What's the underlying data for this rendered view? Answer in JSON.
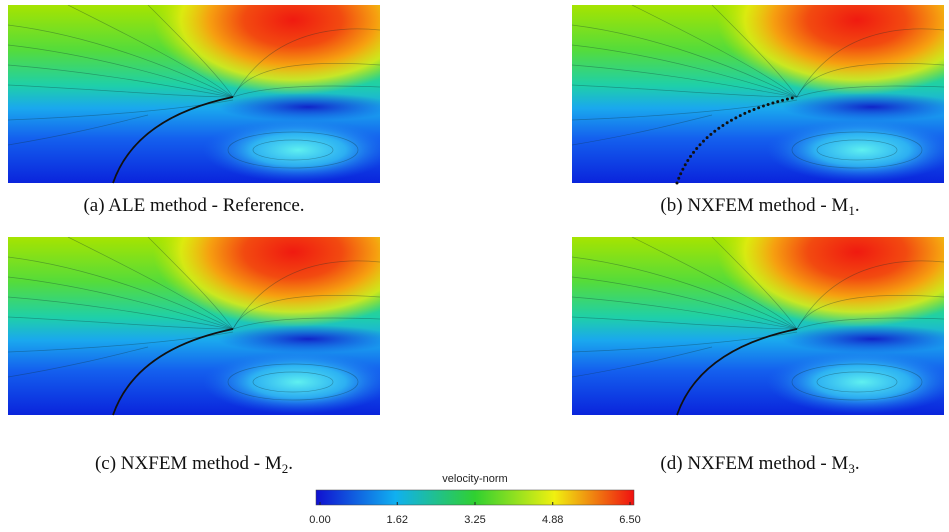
{
  "panels": [
    {
      "caption": {
        "prefix": "(a) ALE method - Reference.",
        "sub": "",
        "suffix": ""
      }
    },
    {
      "caption": {
        "prefix": "(b) NXFEM method - M",
        "sub": "1",
        "suffix": "."
      }
    },
    {
      "caption": {
        "prefix": "(c) NXFEM method - M",
        "sub": "2",
        "suffix": "."
      }
    },
    {
      "caption": {
        "prefix": "(d) NXFEM method - M",
        "sub": "3",
        "suffix": "."
      }
    }
  ],
  "colorbar": {
    "title": "velocity-norm",
    "lim": [
      0,
      6.5
    ],
    "ticks": [
      {
        "value": 0,
        "label": "0.00"
      },
      {
        "value": 1.62,
        "label": "1.62"
      },
      {
        "value": 3.25,
        "label": "3.25"
      },
      {
        "value": 4.88,
        "label": "4.88"
      },
      {
        "value": 6.5,
        "label": "6.50"
      }
    ]
  }
}
